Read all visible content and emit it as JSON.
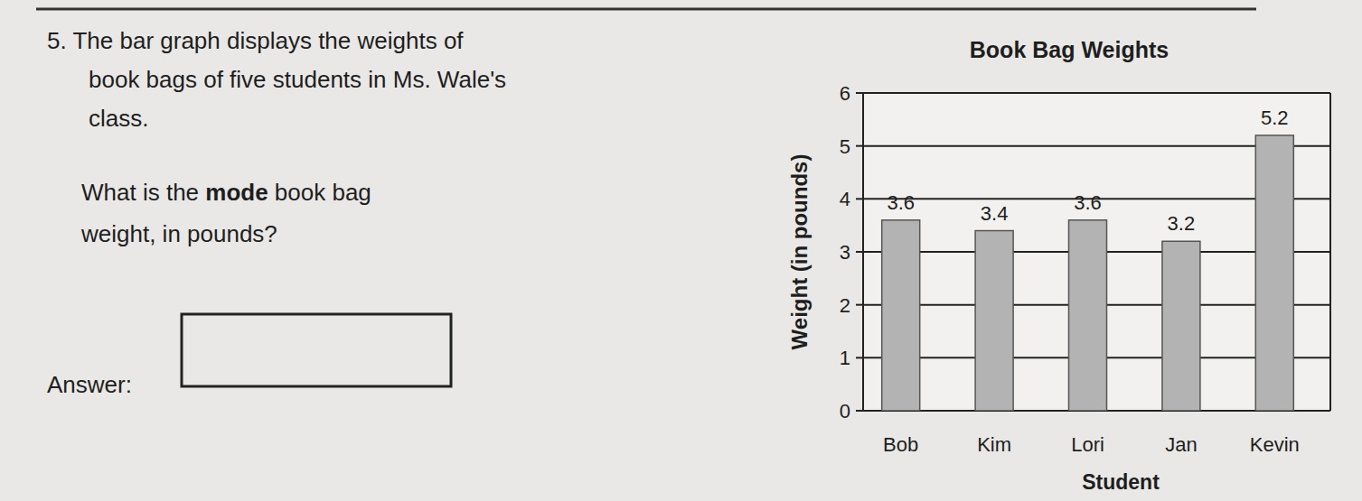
{
  "question": {
    "line1": "5. The bar graph displays the weights of",
    "line2": "book bags of five students in Ms. Wale's",
    "line3": "class.",
    "prompt_before": "What is the ",
    "prompt_bold": "mode",
    "prompt_after": " book bag",
    "prompt_line2": "weight, in pounds?",
    "answer_label": "Answer:"
  },
  "chart_data": {
    "type": "bar",
    "title": "Book Bag Weights",
    "x_label": "Student",
    "y_label": "Weight (in pounds)",
    "categories": [
      "Bob",
      "Kim",
      "Lori",
      "Jan",
      "Kevin"
    ],
    "values": [
      3.6,
      3.4,
      3.6,
      3.2,
      5.2
    ],
    "color": "#b3b3b3",
    "ylim": [
      0,
      6
    ],
    "yticks": [
      0,
      1,
      2,
      3,
      4,
      5,
      6
    ],
    "grid": true,
    "data_labels": true
  }
}
